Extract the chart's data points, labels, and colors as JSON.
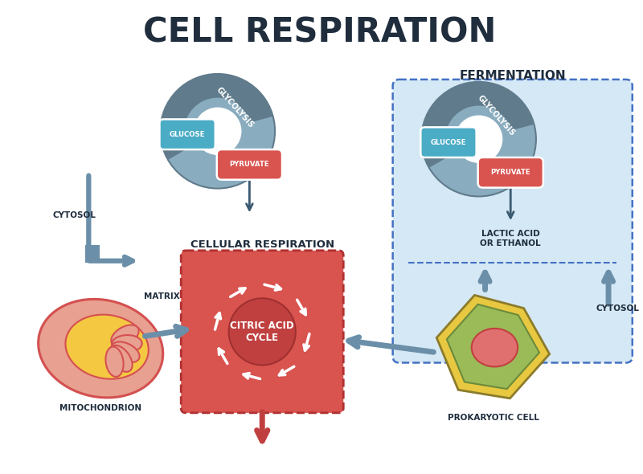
{
  "title": "CELL RESPIRATION",
  "title_fontsize": 30,
  "title_fontweight": "bold",
  "bg_color": "#ffffff",
  "colors": {
    "bg_color": "#ffffff",
    "blue_teal": "#4BACC6",
    "blue_teal_light": "#7BC8DC",
    "gray_swoosh": "#607B8B",
    "gray_swoosh_light": "#8AACBF",
    "red_salmon": "#D9534F",
    "red_salmon_light": "#E07070",
    "light_blue_bg": "#C5D9F1",
    "citric_box": "#D9534F",
    "citric_inner": "#C04040",
    "citric_dark": "#A03030",
    "mito_outer": "#E8A090",
    "mito_inner": "#F5C842",
    "mito_outline": "#D45050",
    "mito_crista": "#D45050",
    "prokary_outer": "#E8C840",
    "prokary_ring": "#9BBB59",
    "prokary_nucleus": "#E07070",
    "prokary_ring_outline": "#6B8B3B",
    "arrow_blue": "#6B8FA8",
    "arrow_blue_dark": "#4472C4",
    "arrow_red": "#C04040",
    "text_dark": "#1F2D3D",
    "ferment_box_bg": "#D5E8F5",
    "dashed_border": "#4472C4",
    "white": "#ffffff"
  },
  "labels": {
    "glucose": "GLUCOSE",
    "glycolysis": "GLYCOLYSIS",
    "pyruvate": "PYRUVATE",
    "cytosol_left": "CYTOSOL",
    "cytosol_right": "CYTOSOL",
    "matrix": "MATRIX",
    "cellular_resp": "CELLULAR RESPIRATION",
    "citric_acid": "CITRIC ACID\nCYCLE",
    "mitochondrion": "MITOCHONDRION",
    "fermentation": "FERMENTATION",
    "lactic_acid": "LACTIC ACID\nOR ETHANOL",
    "prokaryotic": "PROKARYOTIC CELL"
  }
}
